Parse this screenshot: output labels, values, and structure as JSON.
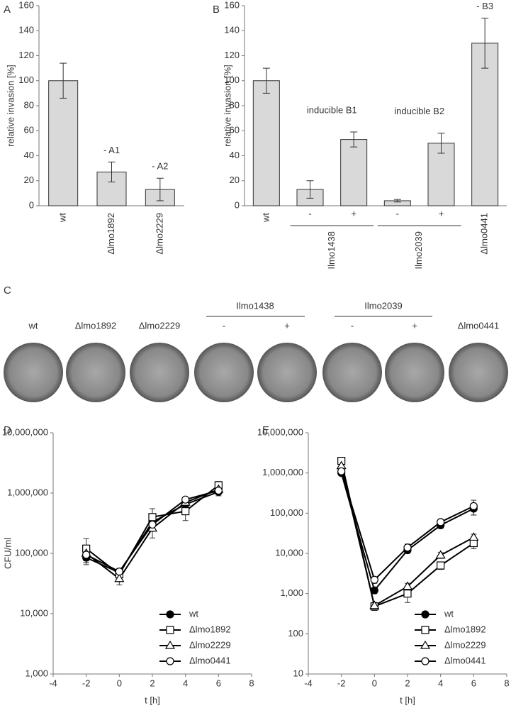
{
  "chart_data": [
    {
      "type": "bar",
      "panel": "A",
      "ylabel": "relative invasion [%]",
      "categories": [
        "wt",
        "Δlmo1892",
        "Δlmo2229"
      ],
      "values": [
        100,
        27,
        13
      ],
      "errors": [
        14,
        8,
        9
      ],
      "color": "#d9d9d9",
      "ylim": [
        0,
        160
      ],
      "yticks": [
        0,
        20,
        40,
        60,
        80,
        100,
        120,
        140,
        160
      ],
      "annotations": [
        "- A1",
        "- A2"
      ]
    },
    {
      "type": "bar",
      "panel": "B",
      "ylabel": "relative invasion [%]",
      "categories": [
        "wt",
        "-",
        "+",
        "-",
        "+",
        "Δlmo0441"
      ],
      "groups": [
        "Ilmo1438",
        "Ilmo2039"
      ],
      "values": [
        100,
        13,
        53,
        4,
        50,
        130
      ],
      "errors": [
        10,
        7,
        6,
        1,
        8,
        20
      ],
      "color": "#d9d9d9",
      "ylim": [
        0,
        160
      ],
      "yticks": [
        0,
        20,
        40,
        60,
        80,
        100,
        120,
        140,
        160
      ],
      "annotations": [
        "inducible B1",
        "inducible B2",
        "- B3"
      ]
    },
    {
      "type": "image",
      "panel": "C",
      "labels": [
        "wt",
        "Δlmo1892",
        "Δlmo2229",
        "Ilmo1438",
        "-",
        "+",
        "Ilmo2039",
        "-",
        "+",
        "Δlmo0441"
      ]
    },
    {
      "type": "line",
      "panel": "D",
      "ylabel": "CFU/ml",
      "xlabel": "t [h]",
      "log_y": true,
      "legend": "lower right",
      "x": [
        -2,
        0,
        2,
        4,
        6
      ],
      "xlim": [
        -4,
        8
      ],
      "xticks": [
        -4,
        -2,
        0,
        2,
        4,
        6,
        8
      ],
      "ylim": [
        1000,
        10000000
      ],
      "yticks": [
        {
          "value": 1000,
          "label": "1,000"
        },
        {
          "value": 10000,
          "label": "10,000"
        },
        {
          "value": 100000,
          "label": "100,000"
        },
        {
          "value": 1000000,
          "label": "1,000,000"
        },
        {
          "value": 10000000,
          "label": "10,000,000"
        }
      ],
      "series": [
        {
          "name": "wt",
          "color": "#000",
          "marker": "circle",
          "fill": "#000",
          "values": [
            85000,
            48000,
            330000,
            650000,
            1050000
          ],
          "errors": [
            15000,
            6000,
            80000,
            100000,
            150000
          ]
        },
        {
          "name": "Δlmo1892",
          "color": "#000",
          "marker": "square",
          "fill": "#fff",
          "values": [
            120000,
            45000,
            400000,
            500000,
            1350000
          ],
          "errors": [
            55000,
            8000,
            150000,
            150000,
            200000
          ]
        },
        {
          "name": "Δlmo2229",
          "color": "#000",
          "marker": "triangle",
          "fill": "#fff",
          "values": [
            100000,
            38000,
            260000,
            700000,
            1150000
          ],
          "errors": [
            30000,
            8000,
            80000,
            120000,
            150000
          ]
        },
        {
          "name": "Δlmo0441",
          "color": "#000",
          "marker": "circle",
          "fill": "#fff",
          "values": [
            95000,
            50000,
            300000,
            780000,
            1100000
          ],
          "errors": [
            20000,
            6000,
            60000,
            80000,
            120000
          ]
        }
      ]
    },
    {
      "type": "line",
      "panel": "E",
      "xlabel": "t [h]",
      "log_y": true,
      "legend": "lower right",
      "x": [
        -2,
        0,
        2,
        4,
        6
      ],
      "xlim": [
        -4,
        8
      ],
      "xticks": [
        -4,
        -2,
        0,
        2,
        4,
        6,
        8
      ],
      "ylim": [
        10,
        10000000
      ],
      "yticks": [
        10,
        100,
        {
          "value": 1000,
          "label": "1,000"
        },
        {
          "value": 10000,
          "label": "10,000"
        },
        {
          "value": 100000,
          "label": "100,000"
        },
        {
          "value": 1000000,
          "label": "1,000,000"
        },
        {
          "value": 10000000,
          "label": "10,000,000"
        }
      ],
      "series": [
        {
          "name": "wt",
          "color": "#000",
          "marker": "circle",
          "fill": "#000",
          "values": [
            1000000,
            1200,
            12000,
            50000,
            130000
          ],
          "errors": [
            100000,
            200,
            2000,
            8000,
            40000
          ]
        },
        {
          "name": "Δlmo1892",
          "color": "#000",
          "marker": "square",
          "fill": "#fff",
          "values": [
            2000000,
            480,
            1000,
            5000,
            18000
          ],
          "errors": [
            200000,
            100,
            400,
            1000,
            5000
          ]
        },
        {
          "name": "Δlmo2229",
          "color": "#000",
          "marker": "triangle",
          "fill": "#fff",
          "values": [
            1500000,
            500,
            1500,
            9000,
            25000
          ],
          "errors": [
            150000,
            100,
            300,
            1500,
            5000
          ]
        },
        {
          "name": "Δlmo0441",
          "color": "#000",
          "marker": "circle",
          "fill": "#fff",
          "values": [
            1100000,
            2200,
            14000,
            60000,
            150000
          ],
          "errors": [
            100000,
            400,
            3000,
            10000,
            60000
          ]
        }
      ]
    }
  ]
}
